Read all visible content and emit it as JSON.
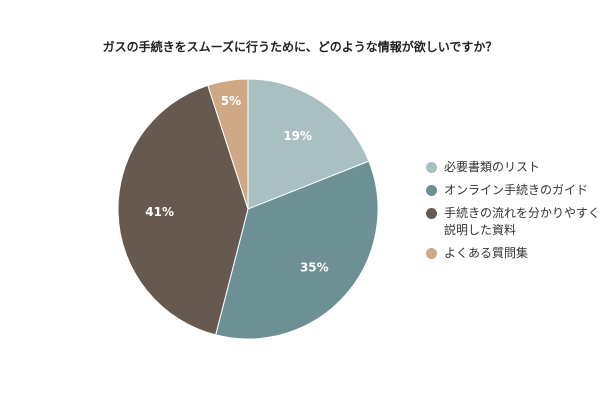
{
  "chart_data": {
    "type": "pie",
    "title": "ガスの手続きをスムーズに行うために、どのような情報が欲しいですか？",
    "slices": [
      {
        "label": "必要書類のリスト",
        "value": 19,
        "display": "19%",
        "color": "#a8c0c1"
      },
      {
        "label": "オンライン手続きのガイド",
        "value": 35,
        "display": "35%",
        "color": "#6d9095"
      },
      {
        "label": "手続きの流れを分かりやすく説明した資料",
        "value": 41,
        "display": "41%",
        "color": "#665a50"
      },
      {
        "label": "よくある質問集",
        "value": 5,
        "display": "5%",
        "color": "#cfa886"
      }
    ],
    "legend_position": "right"
  }
}
